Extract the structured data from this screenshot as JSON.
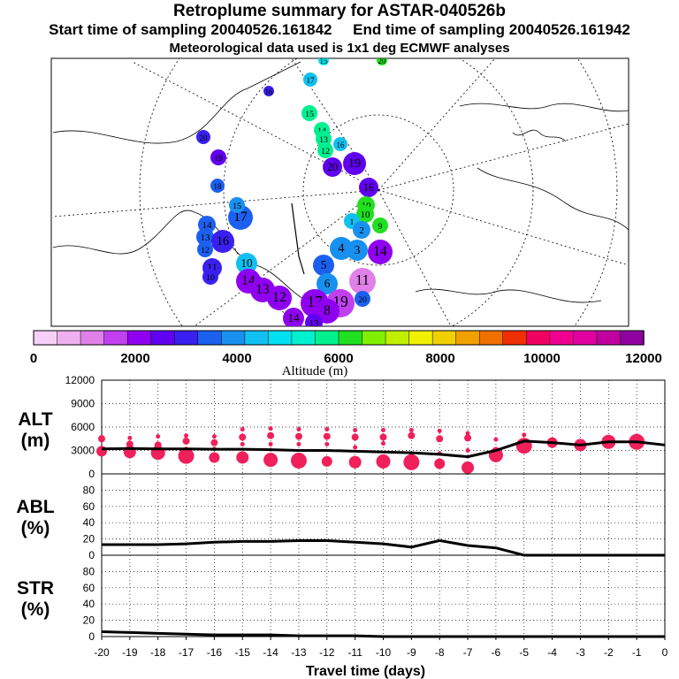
{
  "header": {
    "title": "Retroplume summary for ASTAR-040526b",
    "start_label": "Start time of sampling 20040526.161842",
    "end_label": "End time of sampling 20040526.161942",
    "met_label": "Meteorological data used is 1x1 deg ECMWF analyses"
  },
  "colorbar": {
    "label": "Altitude (m)",
    "ticks": [
      "0",
      "2000",
      "4000",
      "6000",
      "8000",
      "10000",
      "12000"
    ],
    "colors": [
      "#f6d0f6",
      "#eeb0ee",
      "#e080e8",
      "#c040f0",
      "#9000f0",
      "#6000f0",
      "#3a20f0",
      "#1c60f0",
      "#1890f0",
      "#10c0f0",
      "#00e0f0",
      "#00f0d0",
      "#00f090",
      "#20e020",
      "#80f000",
      "#c0f000",
      "#f0f000",
      "#f0d000",
      "#f0a000",
      "#f07000",
      "#f03000",
      "#f00060",
      "#f00090",
      "#e000a0",
      "#c000a0",
      "#9000a0"
    ],
    "range": [
      0,
      12000
    ]
  },
  "map": {
    "segments": [
      {
        "alt": 1200,
        "label": "1",
        "lon_x": 0.52,
        "lat_y": 0.58
      },
      {
        "alt": 2200,
        "label": "2",
        "lon_x": 0.55,
        "lat_y": 0.64
      },
      {
        "alt": 4500,
        "label": "4",
        "lon_x": 0.47,
        "lat_y": 0.56
      }
    ],
    "points": [
      {
        "label": "15",
        "alt": 4800
      },
      {
        "label": "16",
        "alt": 3200
      },
      {
        "label": "17",
        "alt": 4600
      },
      {
        "label": "20",
        "alt": 2800
      },
      {
        "label": "19",
        "alt": 2600
      },
      {
        "label": "18",
        "alt": 3400
      },
      {
        "label": "15",
        "alt": 5600
      },
      {
        "label": "14",
        "alt": 5800
      },
      {
        "label": "13",
        "alt": 5900
      },
      {
        "label": "12",
        "alt": 5800
      },
      {
        "label": "16",
        "alt": 4400
      },
      {
        "label": "20",
        "alt": 2400
      },
      {
        "label": "19",
        "alt": 2400
      },
      {
        "label": "16",
        "alt": 2600
      },
      {
        "label": "10",
        "alt": 6000
      },
      {
        "label": "10",
        "alt": 6200
      },
      {
        "label": "9",
        "alt": 6300
      },
      {
        "label": "1",
        "alt": 4400
      },
      {
        "label": "2",
        "alt": 4000
      },
      {
        "label": "4",
        "alt": 3800
      },
      {
        "label": "3",
        "alt": 3900
      },
      {
        "label": "14",
        "alt": 2000
      },
      {
        "label": "11",
        "alt": 1200
      },
      {
        "label": "5",
        "alt": 3600
      },
      {
        "label": "6",
        "alt": 3700
      },
      {
        "label": "14",
        "alt": 3600
      },
      {
        "label": "13",
        "alt": 3400
      },
      {
        "label": "12",
        "alt": 3300
      },
      {
        "label": "17",
        "alt": 3500
      },
      {
        "label": "16",
        "alt": 3200
      },
      {
        "label": "11",
        "alt": 3100
      },
      {
        "label": "10",
        "alt": 2900
      },
      {
        "label": "10",
        "alt": 4400
      },
      {
        "label": "14",
        "alt": 2300
      },
      {
        "label": "13",
        "alt": 2100
      },
      {
        "label": "12",
        "alt": 2000
      },
      {
        "label": "17",
        "alt": 2100
      },
      {
        "label": "19",
        "alt": 1800
      },
      {
        "label": "8",
        "alt": 1900
      },
      {
        "label": "20",
        "alt": 3600
      },
      {
        "label": "14",
        "alt": 2200
      },
      {
        "label": "13",
        "alt": 2400
      },
      {
        "label": "15",
        "alt": 3800
      },
      {
        "label": "20",
        "alt": 6000
      }
    ]
  },
  "chart_data": [
    {
      "type": "scatter",
      "panel_label": "ALT",
      "panel_unit": "(m)",
      "x": [
        -20,
        -19,
        -18,
        -17,
        -16,
        -15,
        -14,
        -13,
        -12,
        -11,
        -10,
        -9,
        -8,
        -7,
        -6,
        -5,
        -4,
        -3,
        -2,
        -1,
        0
      ],
      "xlim": [
        -20,
        0
      ],
      "ylim": [
        0,
        12000
      ],
      "yticks": [
        "0",
        "3000",
        "6000",
        "9000",
        "12000"
      ],
      "mean_line": [
        3200,
        3250,
        3200,
        3200,
        3150,
        3150,
        3100,
        3000,
        3000,
        2900,
        2800,
        2700,
        2500,
        2200,
        3000,
        4200,
        4000,
        3700,
        4100,
        4100,
        3700
      ],
      "clusters": [
        [
          4700,
          4500,
          3300,
          3100,
          2900
        ],
        [
          4600,
          3800,
          3000,
          2800
        ],
        [
          4800,
          3700,
          3000,
          2700
        ],
        [
          4900,
          4200,
          3200,
          2300
        ],
        [
          4800,
          4000,
          3200,
          2100
        ],
        [
          5700,
          4700,
          3800,
          2100
        ],
        [
          5800,
          4900,
          3800,
          1800
        ],
        [
          5700,
          4800,
          3800,
          1700
        ],
        [
          5700,
          4800,
          3800,
          1600
        ],
        [
          5600,
          4700,
          3400,
          1500
        ],
        [
          5600,
          4700,
          3900,
          1600
        ],
        [
          5600,
          4900,
          2600,
          1500
        ],
        [
          5500,
          4500,
          2600,
          1300
        ],
        [
          5200,
          4600,
          3000,
          800
        ],
        [
          4400,
          3000,
          2400
        ],
        [
          5000,
          3600
        ],
        [
          4000
        ],
        [
          3700
        ],
        [
          4100
        ],
        [
          4100
        ]
      ]
    },
    {
      "type": "line",
      "panel_label": "ABL",
      "panel_unit": "(%)",
      "x": [
        -20,
        -19,
        -18,
        -17,
        -16,
        -15,
        -14,
        -13,
        -12,
        -11,
        -10,
        -9,
        -8,
        -7,
        -6,
        -5,
        -4,
        -3,
        -2,
        -1,
        0
      ],
      "values": [
        13,
        13,
        13,
        14,
        16,
        17,
        17,
        18,
        18,
        16,
        14,
        10,
        18,
        12,
        9,
        0,
        0,
        0,
        0,
        0,
        0
      ],
      "ylim": [
        0,
        100
      ],
      "yticks": [
        "0",
        "20",
        "40",
        "60",
        "80"
      ]
    },
    {
      "type": "line",
      "panel_label": "STR",
      "panel_unit": "(%)",
      "x": [
        -20,
        -19,
        -18,
        -17,
        -16,
        -15,
        -14,
        -13,
        -12,
        -11,
        -10,
        -9,
        -8,
        -7,
        -6,
        -5,
        -4,
        -3,
        -2,
        -1,
        0
      ],
      "values": [
        6,
        5,
        4,
        3,
        2,
        2,
        2,
        1,
        1,
        1,
        0,
        0,
        0,
        0,
        0,
        0,
        0,
        0,
        0,
        0,
        0
      ],
      "ylim": [
        0,
        100
      ],
      "yticks": [
        "0",
        "20",
        "40",
        "60",
        "80"
      ],
      "xticks": [
        "-20",
        "-19",
        "-18",
        "-17",
        "-16",
        "-15",
        "-14",
        "-13",
        "-12",
        "-11",
        "-10",
        "-9",
        "-8",
        "-7",
        "-6",
        "-5",
        "-4",
        "-3",
        "-2",
        "-1",
        "0"
      ],
      "xlabel": "Travel time (days)"
    }
  ]
}
